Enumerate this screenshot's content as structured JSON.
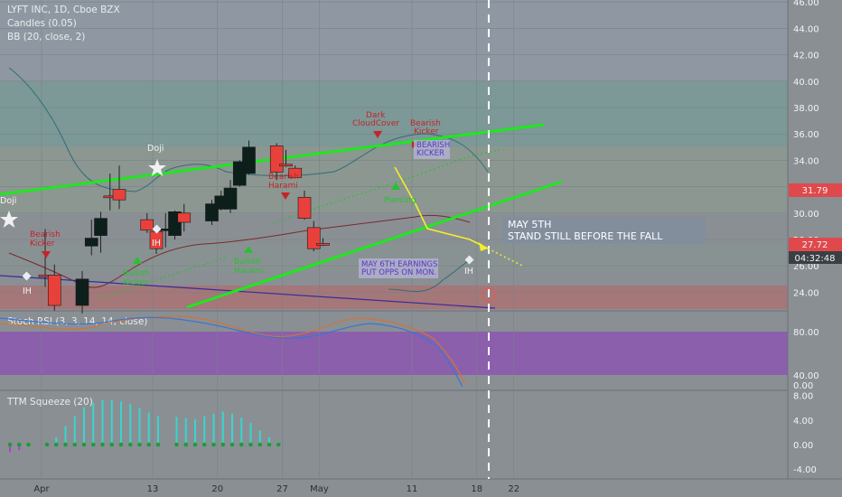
{
  "colors": {
    "background": "#8a8f94",
    "bull_candle": "#0d1f1a",
    "bear_candle": "#e8413c",
    "trend_green": "#1ee81e",
    "projection_yellow": "#f5ef2a",
    "dashed_vertical": "#ffffff",
    "zone_teal": "#6aa39b",
    "zone_red": "#b86868",
    "rsi_purple": "#8b4fb4",
    "price_badge_red": "#e0494b",
    "price_badge_time": "#3a3f45"
  },
  "chart_data": {
    "type": "candlestick",
    "title": "LYFT INC, 1D, Cboe BZX",
    "indicators": [
      "Candles (0.05)",
      "BB (20, close, 2)"
    ],
    "ylim": [
      21.5,
      46
    ],
    "y_ticks": [
      "46.00",
      "44.00",
      "42.00",
      "40.00",
      "38.00",
      "36.00",
      "34.00",
      "32.00",
      "30.00",
      "28.00",
      "26.00",
      "24.00"
    ],
    "x_ticks": [
      {
        "label": "Apr",
        "day": 0
      },
      {
        "label": "13",
        "day": 12
      },
      {
        "label": "20",
        "day": 19
      },
      {
        "label": "27",
        "day": 26
      },
      {
        "label": "May",
        "day": 30
      },
      {
        "label": "11",
        "day": 40
      },
      {
        "label": "18",
        "day": 47
      },
      {
        "label": "22",
        "day": 51
      }
    ],
    "candles": [
      {
        "day": 0,
        "open": 25.3,
        "high": 28.8,
        "low": 24.4,
        "close": 25.2
      },
      {
        "day": 1,
        "open": 25.3,
        "high": 26.1,
        "low": 22.6,
        "close": 23.0
      },
      {
        "day": 4,
        "open": 23.0,
        "high": 25.6,
        "low": 22.4,
        "close": 25.0
      },
      {
        "day": 5,
        "open": 27.5,
        "high": 29.5,
        "low": 26.8,
        "close": 28.1
      },
      {
        "day": 6,
        "open": 28.3,
        "high": 30.1,
        "low": 27.0,
        "close": 29.6
      },
      {
        "day": 7,
        "open": 31.3,
        "high": 33.0,
        "low": 30.2,
        "close": 31.2
      },
      {
        "day": 8,
        "open": 31.8,
        "high": 33.6,
        "low": 30.3,
        "close": 31.0
      },
      {
        "day": 11,
        "open": 29.5,
        "high": 30.0,
        "low": 28.5,
        "close": 28.7
      },
      {
        "day": 12,
        "open": 28.6,
        "high": 28.9,
        "low": 26.9,
        "close": 27.3
      },
      {
        "day": 13,
        "open": 28.7,
        "high": 30.0,
        "low": 27.4,
        "close": 28.8
      },
      {
        "day": 14,
        "open": 28.3,
        "high": 30.2,
        "low": 28.0,
        "close": 30.1
      },
      {
        "day": 15,
        "open": 30.0,
        "high": 30.7,
        "low": 28.6,
        "close": 29.3
      },
      {
        "day": 18,
        "open": 29.4,
        "high": 31.0,
        "low": 29.1,
        "close": 30.7
      },
      {
        "day": 19,
        "open": 30.3,
        "high": 31.7,
        "low": 30.2,
        "close": 31.3
      },
      {
        "day": 20,
        "open": 30.3,
        "high": 32.5,
        "low": 30.0,
        "close": 31.9
      },
      {
        "day": 21,
        "open": 32.1,
        "high": 34.0,
        "low": 32.0,
        "close": 33.9
      },
      {
        "day": 22,
        "open": 33.0,
        "high": 35.5,
        "low": 32.9,
        "close": 35.0
      },
      {
        "day": 25,
        "open": 35.1,
        "high": 35.3,
        "low": 32.5,
        "close": 33.1
      },
      {
        "day": 26,
        "open": 33.7,
        "high": 34.8,
        "low": 33.5,
        "close": 33.6
      },
      {
        "day": 27,
        "open": 33.4,
        "high": 33.6,
        "low": 32.7,
        "close": 32.7
      },
      {
        "day": 28,
        "open": 31.2,
        "high": 31.7,
        "low": 29.5,
        "close": 29.6
      },
      {
        "day": 29,
        "open": 28.9,
        "high": 29.4,
        "low": 27.1,
        "close": 27.3
      },
      {
        "day": 30,
        "open": 27.7,
        "high": 28.1,
        "low": 27.5,
        "close": 27.6
      }
    ],
    "price_labels": {
      "last": "27.72",
      "countdown": "04:32:48",
      "level": "31.79"
    },
    "annotations": {
      "doji_1": "Doji",
      "doji_2": "Doji",
      "bearish_kicker_1": "Bearish\nKicker",
      "bearish_harami": "Bearish\nHarami",
      "dark_cloud_cover": "Dark\nCloudCover",
      "bearish_kicker_2": "Bearish\nKicker",
      "bearish_kicker_box": "BEARISH\nKICKER",
      "ih_1": "IH",
      "ih_2": "IH",
      "ih_3": "IH",
      "bullish_1": "Bullish\nKicker",
      "bullish_2": "Bullish\nHarami",
      "bullish_3": "Piercing",
      "note_main": "MAY 5TH\nSTAND STILL BEFORE THE FALL",
      "note_earnings": "MAY 6TH EARNINGS\nPUT OPPS ON MON."
    },
    "subpanels": [
      {
        "name": "Stoch RSI (3, 3, 14, 14, close)",
        "ylim": [
          0,
          100
        ],
        "y_ticks": [
          "80.00",
          "40.00",
          "0.00"
        ]
      },
      {
        "name": "TTM Squeeze (20)",
        "ylim": [
          -5,
          9
        ],
        "y_ticks": [
          "8.00",
          "4.00",
          "0.00",
          "-4.00"
        ],
        "histogram": [
          {
            "day": 0,
            "value": -1.2
          },
          {
            "day": 1,
            "value": -0.9
          },
          {
            "day": 2,
            "value": -0.2
          },
          {
            "day": 4,
            "value": 0.2
          },
          {
            "day": 5,
            "value": 1.2
          },
          {
            "day": 6,
            "value": 3.0
          },
          {
            "day": 7,
            "value": 4.6
          },
          {
            "day": 8,
            "value": 6.1
          },
          {
            "day": 9,
            "value": 6.8
          },
          {
            "day": 10,
            "value": 7.2
          },
          {
            "day": 11,
            "value": 7.3
          },
          {
            "day": 12,
            "value": 7.0
          },
          {
            "day": 13,
            "value": 6.6
          },
          {
            "day": 14,
            "value": 6.0
          },
          {
            "day": 15,
            "value": 5.2
          },
          {
            "day": 16,
            "value": 4.6
          },
          {
            "day": 18,
            "value": 4.5
          },
          {
            "day": 19,
            "value": 4.3
          },
          {
            "day": 20,
            "value": 4.1
          },
          {
            "day": 21,
            "value": 4.6
          },
          {
            "day": 22,
            "value": 5.0
          },
          {
            "day": 23,
            "value": 5.4
          },
          {
            "day": 24,
            "value": 5.0
          },
          {
            "day": 25,
            "value": 4.4
          },
          {
            "day": 26,
            "value": 3.5
          },
          {
            "day": 27,
            "value": 2.3
          },
          {
            "day": 28,
            "value": 1.2
          },
          {
            "day": 29,
            "value": 0.4
          }
        ]
      }
    ]
  }
}
